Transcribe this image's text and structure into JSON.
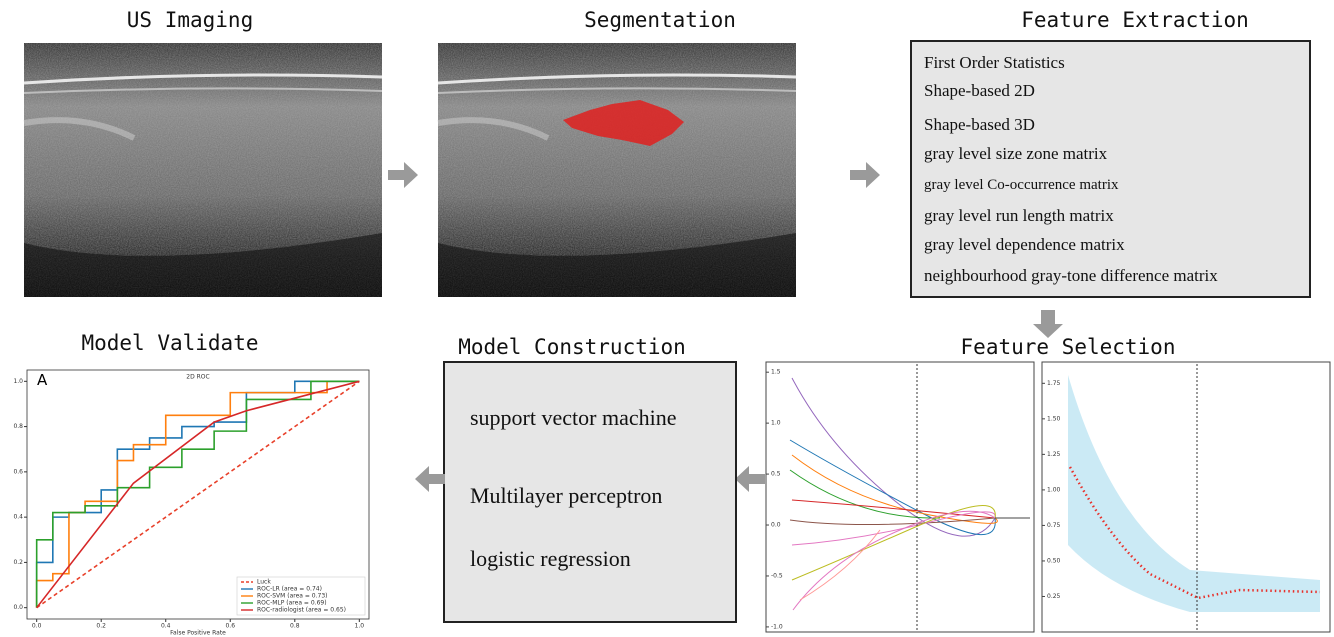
{
  "panels": {
    "us_imaging": {
      "title": "US Imaging"
    },
    "segmentation": {
      "title": "Segmentation"
    },
    "feature_extraction": {
      "title": "Feature Extraction",
      "items": [
        "First Order Statistics",
        "Shape-based 2D",
        "Shape-based 3D",
        "gray level size zone matrix",
        "gray level Co-occurrence matrix",
        "gray level run length matrix",
        "gray level dependence matrix",
        "neighbourhood gray-tone difference matrix"
      ]
    },
    "feature_selection": {
      "title": "Feature Selection",
      "left_plot": {
        "ylim": [
          -1.05,
          1.6
        ],
        "yticks": [
          1.5,
          {
            "value": 1,
            "label": "1.0"
          },
          0.5,
          {
            "value": 0,
            "label": "0.0"
          },
          -0.5,
          {
            "value": -1,
            "label": "-1.0"
          }
        ]
      },
      "right_plot": {
        "ylim": [
          0,
          1.9
        ],
        "yticks": [
          1.75,
          {
            "value": 1.5,
            "label": "1.50"
          },
          1.25,
          {
            "value": 1,
            "label": "1.00"
          },
          0.75,
          {
            "value": 0.5,
            "label": "0.50"
          },
          0.25
        ]
      }
    },
    "model_construction": {
      "title": "Model Construction",
      "items": [
        "support vector machine",
        "Multilayer perceptron",
        "logistic regression"
      ]
    },
    "model_validate": {
      "title": "Model Validate",
      "chart": {
        "type": "line",
        "title": "2D ROC",
        "panel_label": "A",
        "xlabel": "False Positive Rate",
        "xlim": [
          -0.03,
          1.03
        ],
        "ylim": [
          -0.05,
          1.05
        ],
        "xticks": [
          {
            "value": 0,
            "label": "0.0"
          },
          0.2,
          0.4,
          0.6,
          0.8,
          {
            "value": 1,
            "label": "1.0"
          }
        ],
        "yticks": [
          {
            "value": 0,
            "label": "0.0"
          },
          0.2,
          0.4,
          0.6,
          0.8,
          {
            "value": 1,
            "label": "1.0"
          }
        ],
        "series": [
          {
            "name": "Luck",
            "color": "#e8402a",
            "dashed": true,
            "x": [
              0,
              1
            ],
            "y": [
              0,
              1
            ]
          },
          {
            "name": "ROC-LR (area = 0.74)",
            "color": "#1f77b4",
            "dashed": false,
            "x": [
              0,
              0,
              0.05,
              0.05,
              0.1,
              0.1,
              0.2,
              0.2,
              0.25,
              0.25,
              0.35,
              0.35,
              0.45,
              0.45,
              0.55,
              0.55,
              0.65,
              0.65,
              0.8,
              0.8,
              1
            ],
            "y": [
              0,
              0.2,
              0.2,
              0.4,
              0.4,
              0.42,
              0.42,
              0.52,
              0.52,
              0.7,
              0.7,
              0.75,
              0.75,
              0.8,
              0.8,
              0.82,
              0.82,
              0.95,
              0.95,
              1,
              1
            ]
          },
          {
            "name": "ROC-SVM (area = 0.73)",
            "color": "#ff7f0e",
            "dashed": false,
            "x": [
              0,
              0,
              0.05,
              0.05,
              0.1,
              0.1,
              0.15,
              0.15,
              0.25,
              0.25,
              0.3,
              0.3,
              0.4,
              0.4,
              0.6,
              0.6,
              0.9,
              0.9,
              1
            ],
            "y": [
              0,
              0.12,
              0.12,
              0.15,
              0.15,
              0.42,
              0.42,
              0.47,
              0.47,
              0.65,
              0.65,
              0.72,
              0.72,
              0.85,
              0.85,
              0.95,
              0.95,
              1,
              1
            ]
          },
          {
            "name": "ROC-MLP (area = 0.69)",
            "color": "#2ca02c",
            "dashed": false,
            "x": [
              0,
              0,
              0.05,
              0.05,
              0.15,
              0.15,
              0.25,
              0.25,
              0.35,
              0.35,
              0.45,
              0.45,
              0.55,
              0.55,
              0.65,
              0.65,
              0.85,
              0.85,
              1
            ],
            "y": [
              0,
              0.3,
              0.3,
              0.42,
              0.42,
              0.45,
              0.45,
              0.53,
              0.53,
              0.62,
              0.62,
              0.7,
              0.7,
              0.78,
              0.78,
              0.92,
              0.92,
              1,
              1
            ]
          },
          {
            "name": "ROC-radiologist (area = 0.65)",
            "color": "#d62728",
            "dashed": false,
            "x": [
              0,
              0.3,
              0.55,
              0.65,
              1
            ],
            "y": [
              0,
              0.55,
              0.82,
              0.87,
              1
            ]
          }
        ]
      }
    }
  }
}
